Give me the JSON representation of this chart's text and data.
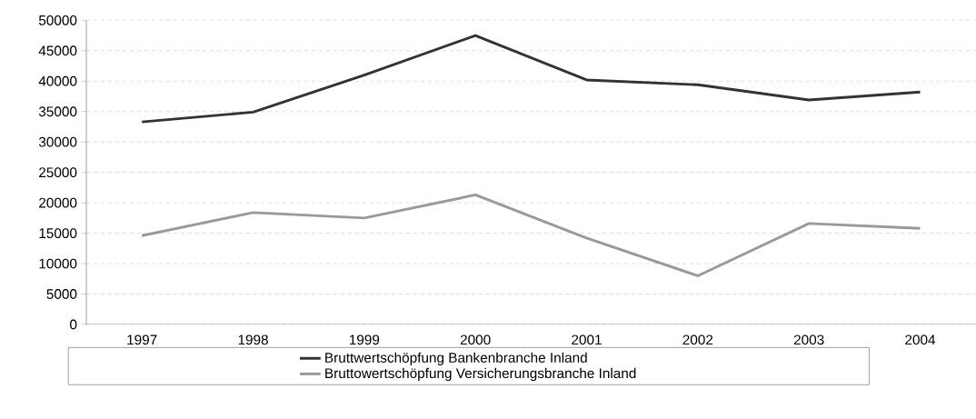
{
  "chart_data": {
    "type": "line",
    "categories": [
      "1997",
      "1998",
      "1999",
      "2000",
      "2001",
      "2002",
      "2003",
      "2004"
    ],
    "series": [
      {
        "name": "Bruttwertschöpfung Bankenbranche Inland",
        "color": "#333333",
        "values": [
          33300,
          34900,
          41000,
          47500,
          40200,
          39400,
          36900,
          38200
        ]
      },
      {
        "name": "Bruttowertschöpfung Versicherungsbranche Inland",
        "color": "#999999",
        "values": [
          14600,
          18400,
          17500,
          21300,
          14200,
          8000,
          16600,
          15800
        ]
      }
    ],
    "ylim": [
      0,
      50000
    ],
    "yticks": [
      0,
      5000,
      10000,
      15000,
      20000,
      25000,
      30000,
      35000,
      40000,
      45000,
      50000
    ],
    "grid": "y",
    "legend": "bottom",
    "marker": "none",
    "line_style": "solid"
  }
}
